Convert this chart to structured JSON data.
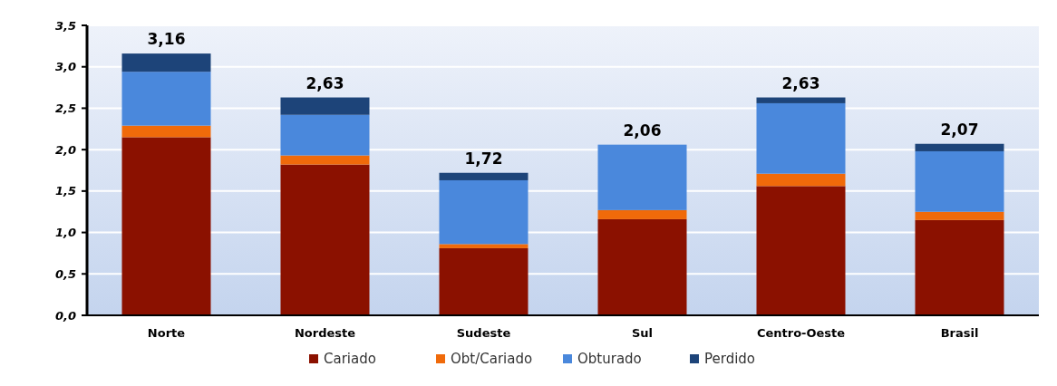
{
  "chart_data": {
    "type": "bar",
    "stacked": true,
    "categories": [
      "Norte",
      "Nordeste",
      "Sudeste",
      "Sul",
      "Centro-Oeste",
      "Brasil"
    ],
    "series": [
      {
        "name": "Cariado",
        "color": "#8b1100",
        "values": [
          2.15,
          1.82,
          0.81,
          1.16,
          1.56,
          1.15
        ]
      },
      {
        "name": "Obt/Cariado",
        "color": "#f06a0a",
        "values": [
          0.14,
          0.11,
          0.05,
          0.11,
          0.15,
          0.1
        ]
      },
      {
        "name": "Obturado",
        "color": "#4a88dc",
        "values": [
          0.65,
          0.49,
          0.77,
          0.79,
          0.85,
          0.73
        ]
      },
      {
        "name": "Perdido",
        "color": "#1d4479",
        "values": [
          0.22,
          0.21,
          0.09,
          0,
          0.07,
          0.09
        ]
      }
    ],
    "totals": [
      "3,16",
      "2,63",
      "1,72",
      "2,06",
      "2,63",
      "2,07"
    ],
    "ylim": [
      0,
      3.5
    ],
    "yticks": [
      {
        "value": 0,
        "label": "0,0"
      },
      {
        "value": 0.5,
        "label": "0,5"
      },
      {
        "value": 1,
        "label": "1,0"
      },
      {
        "value": 1.5,
        "label": "1,5"
      },
      {
        "value": 2,
        "label": "2,0"
      },
      {
        "value": 2.5,
        "label": "2,5"
      },
      {
        "value": 3,
        "label": "3,0"
      },
      {
        "value": 3.5,
        "label": "3,5"
      }
    ],
    "grid": "y",
    "legend": "bottom"
  }
}
